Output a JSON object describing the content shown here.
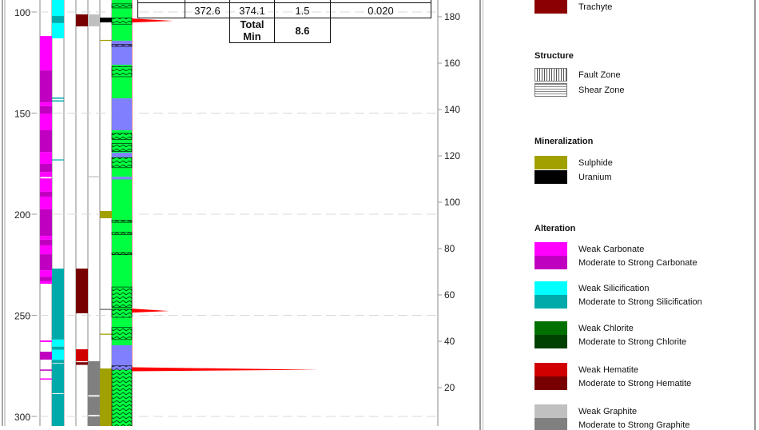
{
  "depth_axis": {
    "ticks": [
      100,
      150,
      200,
      250,
      300
    ]
  },
  "value_axis": {
    "ticks": [
      20,
      40,
      60,
      80,
      100,
      120,
      140,
      160,
      180
    ]
  },
  "table": {
    "row": [
      "",
      "372.6",
      "374.1",
      "1.5",
      "0.020"
    ],
    "total_label": "Total Min",
    "total_value": "8.6"
  },
  "colors": {
    "weak_carbonate": "#ff00ff",
    "strong_carbonate": "#c000c0",
    "weak_silicification": "#00ffff",
    "strong_silicification": "#00aaaa",
    "weak_chlorite": "#007000",
    "strong_chlorite": "#004000",
    "weak_hematite": "#d00000",
    "strong_hematite": "#780000",
    "weak_graphite": "#c0c0c0",
    "strong_graphite": "#808080",
    "sulphide": "#a0a000",
    "uranium": "#000000",
    "trachyte": "#8b0000",
    "lithology_green": "#00ff40",
    "lithology_purple": "#8080ff",
    "assay": "#ff0000"
  },
  "log": {
    "carbonate": [
      [
        111.9,
        128.9,
        "w"
      ],
      [
        128.9,
        144.7,
        "s"
      ],
      [
        144.7,
        146.6,
        "w"
      ],
      [
        146.6,
        150.2,
        "s"
      ],
      [
        150.2,
        158.5,
        "w"
      ],
      [
        158.5,
        169.2,
        "s"
      ],
      [
        169.2,
        175.1,
        "w"
      ],
      [
        175.1,
        179.1,
        "s"
      ],
      [
        179.1,
        181.6,
        "w"
      ],
      [
        182.3,
        188.9,
        "w"
      ],
      [
        188.9,
        191.3,
        "s"
      ],
      [
        191.3,
        197.6,
        "w"
      ],
      [
        197.6,
        210.7,
        "s"
      ],
      [
        210.7,
        212.6,
        "w"
      ],
      [
        212.6,
        215.4,
        "s"
      ],
      [
        215.4,
        219.8,
        "w"
      ],
      [
        219.8,
        227.7,
        "s"
      ],
      [
        227.7,
        231,
        "w"
      ],
      [
        231,
        233,
        "s"
      ],
      [
        233,
        234.4,
        "w"
      ],
      [
        262.4,
        263.2,
        "w"
      ],
      [
        268,
        271.9,
        "s"
      ],
      [
        276.8,
        277.4,
        "s"
      ],
      [
        281.2,
        281.8,
        "w"
      ]
    ],
    "silicification": [
      [
        90,
        102,
        "w"
      ],
      [
        102,
        105.5,
        "s"
      ],
      [
        105.5,
        113,
        "w"
      ],
      [
        142.3,
        142.9,
        "s"
      ],
      [
        143.7,
        144.3,
        "s"
      ],
      [
        172.9,
        173.4,
        "s"
      ],
      [
        226.9,
        262,
        "s"
      ],
      [
        262,
        265.5,
        "w"
      ],
      [
        265.5,
        267,
        "s"
      ],
      [
        267,
        272,
        "w"
      ],
      [
        272,
        273.5,
        "s"
      ],
      [
        273.8,
        288.5,
        "s"
      ],
      [
        288.9,
        305,
        "s"
      ]
    ],
    "hematite": [
      [
        101.2,
        107.1,
        "s"
      ],
      [
        226.9,
        249,
        "s"
      ],
      [
        266.8,
        272.7,
        "w"
      ],
      [
        273.2,
        274.5,
        "s"
      ]
    ],
    "graphite": [
      [
        101.2,
        107.1,
        "w"
      ],
      [
        181.2,
        181.7,
        "w"
      ],
      [
        272.7,
        289.5,
        "s"
      ],
      [
        290.2,
        299.3,
        "s"
      ],
      [
        300,
        305,
        "s"
      ]
    ],
    "mineralization": [
      [
        102.8,
        105.1,
        "u"
      ],
      [
        113.8,
        114.3,
        "s"
      ],
      [
        198.4,
        202,
        "s"
      ],
      [
        259.1,
        259.6,
        "s"
      ],
      [
        246.8,
        247.4,
        "g"
      ],
      [
        276.3,
        305,
        "s"
      ]
    ],
    "lithology": [
      [
        90,
        114.2,
        "g"
      ],
      [
        114.2,
        126.1,
        "p"
      ],
      [
        126.1,
        142.7,
        "g"
      ],
      [
        142.7,
        158.5,
        "p"
      ],
      [
        158.5,
        169.6,
        "g"
      ],
      [
        169.6,
        171.8,
        "p"
      ],
      [
        171.8,
        181.5,
        "g"
      ],
      [
        181.5,
        182.8,
        "p"
      ],
      [
        182.8,
        264.8,
        "g"
      ],
      [
        264.8,
        277,
        "p"
      ],
      [
        277,
        305,
        "g"
      ]
    ],
    "shear": [
      [
        90,
        93
      ],
      [
        96,
        98
      ],
      [
        103,
        106
      ],
      [
        116,
        117
      ],
      [
        127,
        132
      ],
      [
        160,
        163
      ],
      [
        165,
        169
      ],
      [
        172,
        177
      ],
      [
        203,
        204
      ],
      [
        209,
        210
      ],
      [
        219,
        220
      ],
      [
        236,
        246
      ],
      [
        247,
        251
      ],
      [
        256,
        262
      ],
      [
        275,
        305
      ]
    ],
    "assay_spikes": [
      [
        104,
        0.2
      ],
      [
        247.5,
        0.18
      ],
      [
        276.5,
        0.9
      ]
    ]
  },
  "legend": {
    "lithology_item": "Trachyte",
    "structure_title": "Structure",
    "structure_items": [
      "Fault Zone",
      "Shear Zone"
    ],
    "mineralization_title": "Mineralization",
    "mineralization_items": [
      "Sulphide",
      "Uranium"
    ],
    "alteration_title": "Alteration",
    "alteration_items": [
      "Weak Carbonate",
      "Moderate to Strong Carbonate",
      "Weak Silicification",
      "Moderate to Strong Silicification",
      "Weak Chlorite",
      "Moderate to Strong Chlorite",
      "Weak Hematite",
      "Moderate to Strong Hematite",
      "Weak Graphite",
      "Moderate to Strong Graphite"
    ]
  }
}
